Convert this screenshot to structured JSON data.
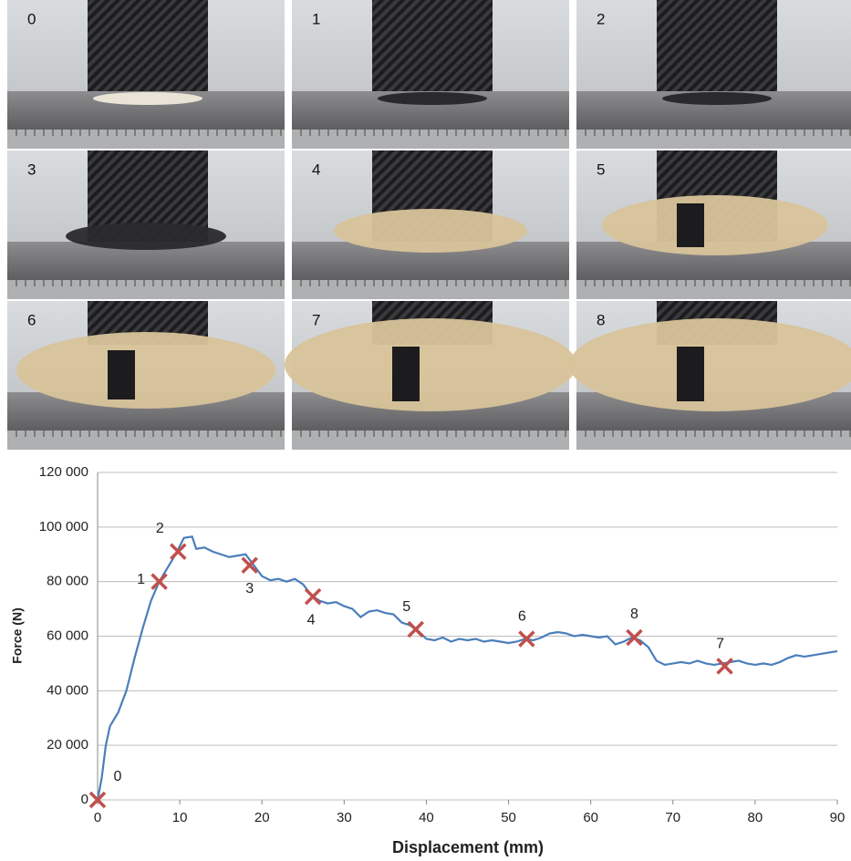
{
  "photos": {
    "labels": [
      "0",
      "1",
      "2",
      "3",
      "4",
      "5",
      "6",
      "7",
      "8"
    ]
  },
  "chart_data": {
    "type": "line",
    "y_label": "Force (N)",
    "x_label": "Displacement (mm)",
    "xlim": [
      0,
      90
    ],
    "xticks": [
      0,
      10,
      20,
      30,
      40,
      50,
      60,
      70,
      80,
      90
    ],
    "ylim": [
      0,
      120000
    ],
    "yticks": [
      0,
      {
        "value": 20000,
        "label": "20 000"
      },
      {
        "value": 40000,
        "label": "40 000"
      },
      {
        "value": 60000,
        "label": "60 000"
      },
      {
        "value": 80000,
        "label": "80 000"
      },
      {
        "value": 100000,
        "label": "100 000"
      },
      {
        "value": 120000,
        "label": "120 000"
      }
    ],
    "grid": true,
    "x": [
      0,
      0.5,
      1,
      1.5,
      2.5,
      3.5,
      4.5,
      5.5,
      6.5,
      7.5,
      8.5,
      9.5,
      10.5,
      11.5,
      12,
      13,
      14,
      15,
      16,
      17,
      18,
      19,
      20,
      21,
      22,
      23,
      24,
      25,
      26,
      27,
      28,
      29,
      30,
      31,
      32,
      33,
      34,
      35,
      36,
      37,
      38,
      39,
      40,
      41,
      42,
      43,
      44,
      45,
      46,
      47,
      48,
      49,
      50,
      51,
      52,
      53,
      54,
      55,
      56,
      57,
      58,
      59,
      60,
      61,
      62,
      63,
      64,
      65,
      66,
      67,
      68,
      69,
      70,
      71,
      72,
      73,
      74,
      75,
      76,
      77,
      78,
      79,
      80,
      81,
      82,
      83,
      84,
      85,
      86,
      87,
      88,
      89,
      90
    ],
    "series": [
      {
        "color": "#4a7ebb",
        "values": [
          0,
          8000,
          20000,
          27000,
          32000,
          40000,
          52000,
          63000,
          73000,
          80000,
          85000,
          90000,
          96000,
          96500,
          92000,
          92500,
          91000,
          90000,
          89000,
          89500,
          90000,
          86000,
          82000,
          80500,
          81000,
          80000,
          81000,
          79000,
          75000,
          73000,
          72000,
          72500,
          71000,
          70000,
          67000,
          69000,
          69500,
          68500,
          68000,
          65000,
          64000,
          62000,
          59000,
          58500,
          59500,
          58000,
          59000,
          58500,
          59000,
          58000,
          58500,
          58000,
          57500,
          58000,
          59000,
          58500,
          59500,
          61000,
          61500,
          61000,
          60000,
          60500,
          60000,
          59500,
          60000,
          57000,
          58000,
          59500,
          58500,
          56000,
          51000,
          49500,
          50000,
          50500,
          50000,
          51000,
          50000,
          49500,
          50000,
          50500,
          51000,
          50000,
          49500,
          50000,
          49500,
          50500,
          52000,
          53000,
          52500,
          53000,
          53500,
          54000,
          54500
        ]
      }
    ],
    "marker_color": "#c0504d",
    "annotations": [
      {
        "label": "0",
        "x": 0,
        "y": 0
      },
      {
        "label": "1",
        "x": 7.5,
        "y": 80000
      },
      {
        "label": "2",
        "x": 9.8,
        "y": 91000
      },
      {
        "label": "3",
        "x": 18.5,
        "y": 86000
      },
      {
        "label": "4",
        "x": 26.2,
        "y": 74500
      },
      {
        "label": "5",
        "x": 38.7,
        "y": 62500
      },
      {
        "label": "6",
        "x": 52.2,
        "y": 59000
      },
      {
        "label": "7",
        "x": 76.3,
        "y": 49000
      },
      {
        "label": "8",
        "x": 65.3,
        "y": 59500
      }
    ]
  }
}
